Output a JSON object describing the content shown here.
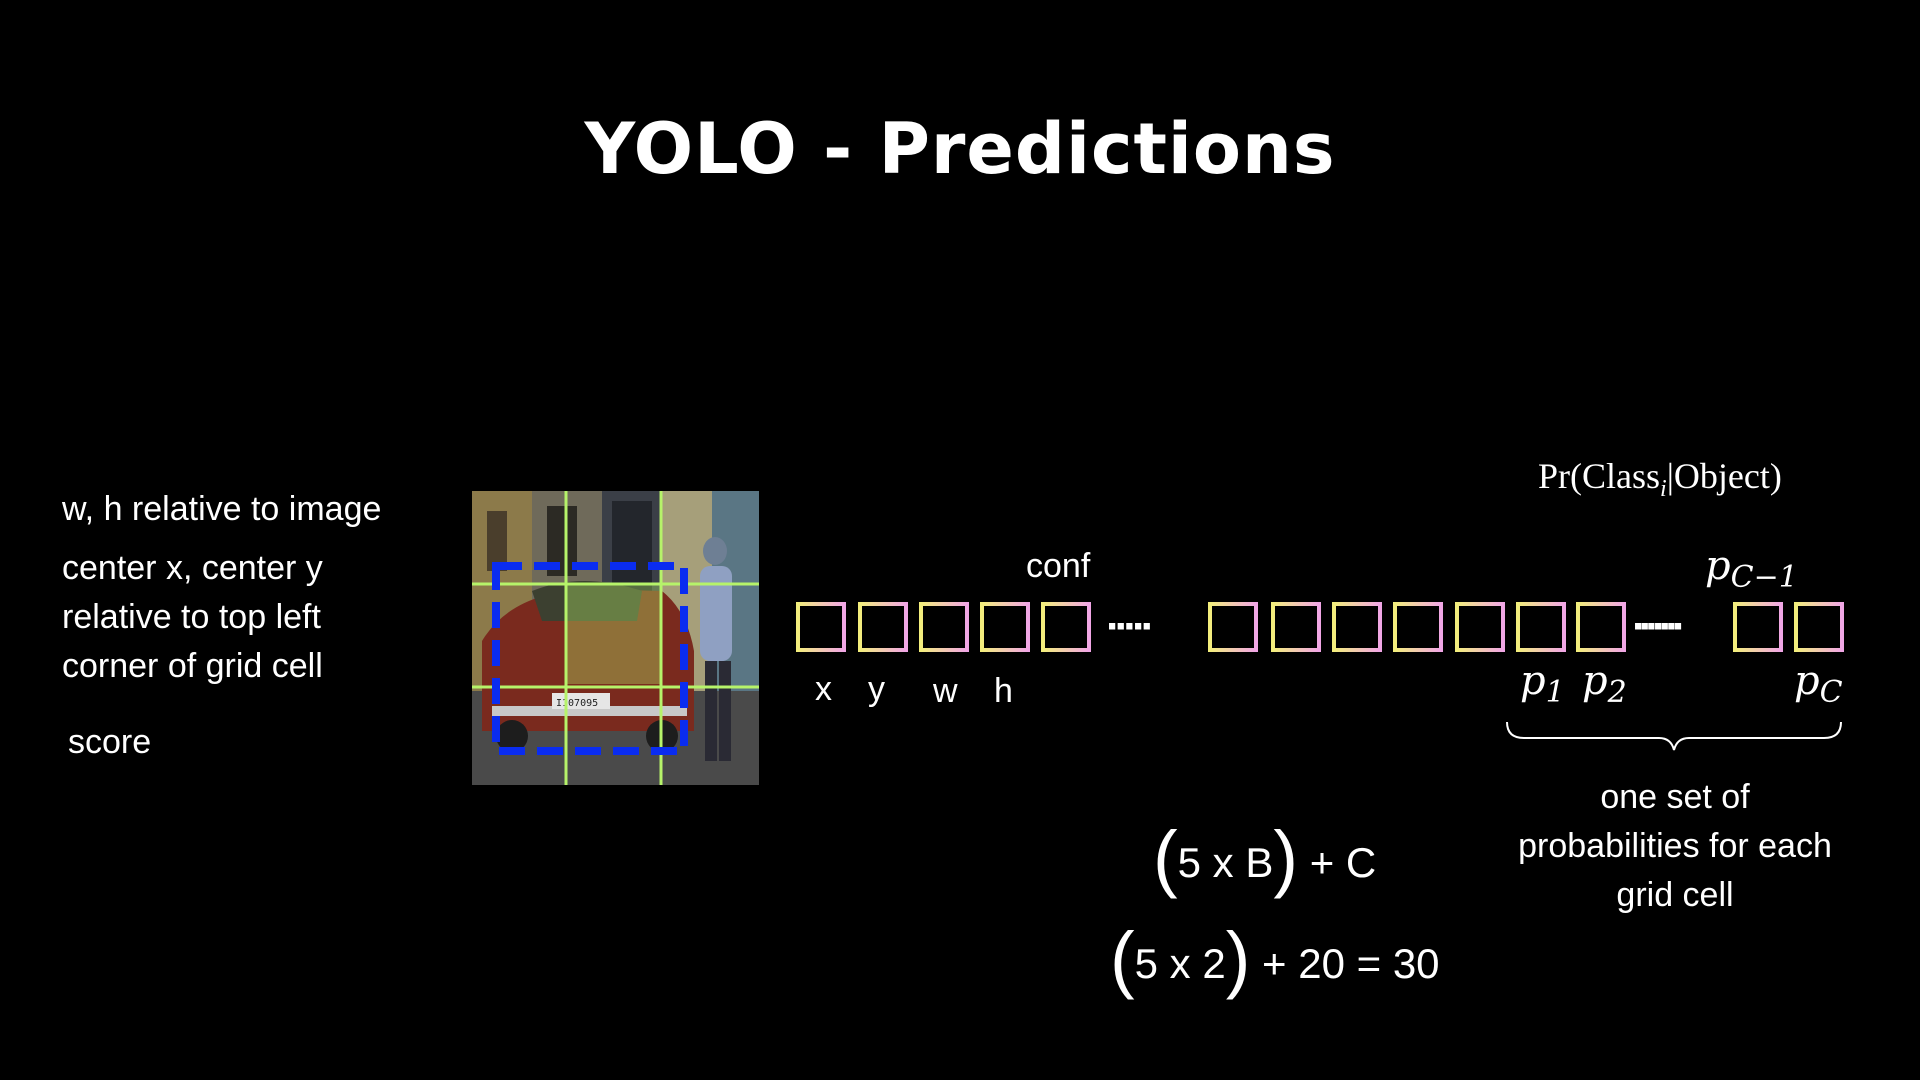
{
  "slide": {
    "title": "YOLO - Predictions",
    "left_notes": {
      "wh": "w, h relative to image",
      "center_line1": "center x, center y",
      "center_line2": "relative to top left",
      "center_line3": "corner of grid cell",
      "score": "score"
    },
    "vector": {
      "box_labels": [
        "x",
        "y",
        "w",
        "h"
      ],
      "conf_label": "conf",
      "ellipsis": "·····",
      "ellipsis2": "·······",
      "prob_formula_main": "Pr(Class",
      "prob_formula_sub": "i",
      "prob_formula_end": "|Object)",
      "p_labels": [
        {
          "base": "p",
          "sub": "1"
        },
        {
          "base": "p",
          "sub": "2"
        },
        {
          "base": "p",
          "sub": "C−1"
        },
        {
          "base": "p",
          "sub": "C"
        }
      ],
      "brace_caption_1": "one set of",
      "brace_caption_2": "probabilities for each",
      "brace_caption_3": "grid cell"
    },
    "formulas": {
      "general_inner": "5 x B",
      "general_tail": " + C",
      "example_inner": "5 x 2",
      "example_tail": " + 20 = 30"
    },
    "colors": {
      "background": "#000000",
      "cell_gradient": [
        "#f3ee7c",
        "#f1a6e6"
      ],
      "grid_lines": "#b6f36a",
      "bbox": "#0a2cf0"
    },
    "icons": {
      "photo": "car-street-photo"
    }
  }
}
